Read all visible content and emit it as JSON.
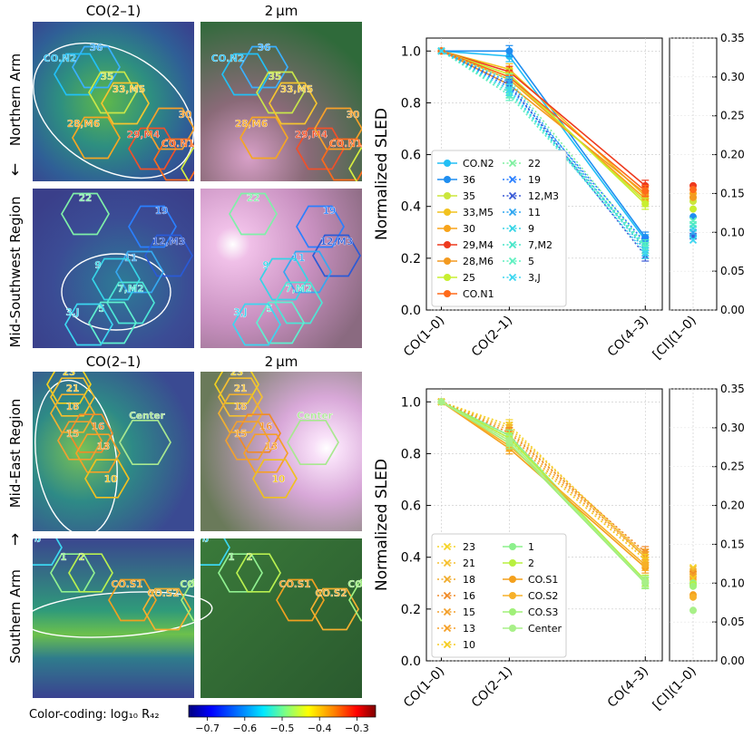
{
  "left_panel": {
    "top_headers": [
      "CO(2–1)",
      "2 μm"
    ],
    "mid_headers": [
      "CO(2–1)",
      "2 μm"
    ],
    "region_labels": [
      "Northern Arm",
      "Mid-Southwest Region",
      "Mid-East Region",
      "Southern Arm"
    ],
    "arrows": [
      "←",
      "→"
    ],
    "colorbar_label": "Color-coding: log₁₀ R₄₂",
    "colorbar_ticks": [
      "−0.7",
      "−0.6",
      "−0.5",
      "−0.4",
      "−0.3"
    ],
    "colorbar_colors": [
      "#00007f",
      "#0000ff",
      "#007fff",
      "#00ffff",
      "#7fff7f",
      "#ffff00",
      "#ff7f00",
      "#ff0000",
      "#7f0000"
    ],
    "panels": [
      {
        "hexes": [
          {
            "label": "36",
            "color": "#3ab0ff"
          },
          {
            "label": "CO.N2",
            "color": "#22c0f5"
          },
          {
            "label": "35",
            "color": "#c8e64a"
          },
          {
            "label": "33,M5",
            "color": "#f4c430"
          },
          {
            "label": "28,M6",
            "color": "#f5a623"
          },
          {
            "label": "29,M4",
            "color": "#f0502a"
          },
          {
            "label": "30",
            "color": "#f7a02a"
          },
          {
            "label": "CO.N1",
            "color": "#ff6a1a"
          },
          {
            "label": "25",
            "color": "#d6ee40"
          }
        ]
      },
      {
        "hexes": [
          {
            "label": "22",
            "color": "#7ff0a8"
          },
          {
            "label": "19",
            "color": "#2a7fff"
          },
          {
            "label": "12,M3",
            "color": "#2a5ad6"
          },
          {
            "label": "11",
            "color": "#35a8f0"
          },
          {
            "label": "9",
            "color": "#36d4e6"
          },
          {
            "label": "7,M2",
            "color": "#4ce6d6"
          },
          {
            "label": "5",
            "color": "#5ff0d0"
          },
          {
            "label": "3,J",
            "color": "#3cd6f0"
          }
        ]
      },
      {
        "hexes": [
          {
            "label": "23",
            "color": "#f0d020"
          },
          {
            "label": "21",
            "color": "#f5c030"
          },
          {
            "label": "18",
            "color": "#f0b030"
          },
          {
            "label": "16",
            "color": "#f08a28"
          },
          {
            "label": "15",
            "color": "#f0a030"
          },
          {
            "label": "13",
            "color": "#f5a028"
          },
          {
            "label": "10",
            "color": "#f0c020"
          },
          {
            "label": "Center",
            "color": "#a8e890"
          }
        ]
      },
      {
        "hexes": [
          {
            "label": "3,J",
            "color": "#3cd6f0"
          },
          {
            "label": "1",
            "color": "#90f090"
          },
          {
            "label": "2",
            "color": "#b8f050"
          },
          {
            "label": "CO.S1",
            "color": "#f0a020"
          },
          {
            "label": "CO.S2",
            "color": "#f5b030"
          },
          {
            "label": "CO.S3",
            "color": "#a0f080"
          }
        ]
      }
    ]
  },
  "chart_data": [
    {
      "type": "line",
      "title": "",
      "ylabel": "Normalized SLED",
      "categories": [
        "CO(1–0)",
        "CO(2–1)",
        "CO(4–3)"
      ],
      "x_positions": [
        1,
        2,
        4
      ],
      "ylim": [
        0.0,
        1.05
      ],
      "yticks": [
        "0.0",
        "0.2",
        "0.4",
        "0.6",
        "0.8",
        "1.0"
      ],
      "right_categories": [
        "[CI](1–0)"
      ],
      "right_ylim": [
        0.0,
        0.35
      ],
      "right_yticks": [
        "0.00",
        "0.05",
        "0.10",
        "0.15",
        "0.20",
        "0.25",
        "0.30",
        "0.35"
      ],
      "series": [
        {
          "name": "CO.N2",
          "color": "#22bff5",
          "values": [
            1.0,
            0.98,
            0.27
          ],
          "ci": 0.095
        },
        {
          "name": "36",
          "color": "#1f8ef0",
          "values": [
            1.0,
            1.0,
            0.28
          ],
          "ci": 0.12
        },
        {
          "name": "35",
          "color": "#cbe63c",
          "values": [
            1.0,
            0.9,
            0.42
          ],
          "ci": 0.14
        },
        {
          "name": "33,M5",
          "color": "#f2c21e",
          "values": [
            1.0,
            0.93,
            0.44
          ],
          "ci": 0.145
        },
        {
          "name": "30",
          "color": "#f8a41a",
          "values": [
            1.0,
            0.89,
            0.43
          ],
          "ci": 0.15
        },
        {
          "name": "29,M4",
          "color": "#ee3a1e",
          "values": [
            1.0,
            0.92,
            0.48
          ],
          "ci": 0.16
        },
        {
          "name": "28,M6",
          "color": "#f39a20",
          "values": [
            1.0,
            0.87,
            0.45
          ],
          "ci": 0.145
        },
        {
          "name": "25",
          "color": "#c8ef30",
          "values": [
            1.0,
            0.91,
            0.41
          ],
          "ci": 0.13
        },
        {
          "name": "CO.N1",
          "color": "#ff6a1a",
          "values": [
            1.0,
            0.9,
            0.46
          ],
          "ci": 0.155
        },
        {
          "name": "22",
          "color": "#7ff0a0",
          "values": [
            1.0,
            0.89,
            0.25
          ],
          "dashed": true,
          "ci": 0.11
        },
        {
          "name": "19",
          "color": "#2a7fff",
          "values": [
            1.0,
            0.86,
            0.26
          ],
          "dashed": true,
          "ci": 0.1
        },
        {
          "name": "12,M3",
          "color": "#3a5ad6",
          "values": [
            1.0,
            0.87,
            0.21
          ],
          "dashed": true,
          "ci": 0.095
        },
        {
          "name": "11",
          "color": "#2fa6f0",
          "values": [
            1.0,
            0.88,
            0.23
          ],
          "dashed": true,
          "ci": 0.1
        },
        {
          "name": "9",
          "color": "#36d4e6",
          "values": [
            1.0,
            0.85,
            0.24
          ],
          "dashed": true,
          "ci": 0.105
        },
        {
          "name": "7,M2",
          "color": "#46e6c8",
          "values": [
            1.0,
            0.84,
            0.25
          ],
          "dashed": true,
          "ci": 0.11
        },
        {
          "name": "5",
          "color": "#5ff0c0",
          "values": [
            1.0,
            0.83,
            0.24
          ],
          "dashed": true,
          "ci": 0.115
        },
        {
          "name": "3,J",
          "color": "#3cd6f0",
          "values": [
            1.0,
            0.85,
            0.22
          ],
          "dashed": true,
          "ci": 0.09
        }
      ]
    },
    {
      "type": "line",
      "title": "",
      "ylabel": "Normalized SLED",
      "categories": [
        "CO(1–0)",
        "CO(2–1)",
        "CO(4–3)"
      ],
      "x_positions": [
        1,
        2,
        4
      ],
      "ylim": [
        0.0,
        1.05
      ],
      "yticks": [
        "0.0",
        "0.2",
        "0.4",
        "0.6",
        "0.8",
        "1.0"
      ],
      "right_categories": [
        "[CI](1–0)"
      ],
      "right_ylim": [
        0.0,
        0.35
      ],
      "right_yticks": [
        "0.00",
        "0.05",
        "0.10",
        "0.15",
        "0.20",
        "0.25",
        "0.30",
        "0.35"
      ],
      "series": [
        {
          "name": "23",
          "color": "#f5d428",
          "values": [
            1.0,
            0.91,
            0.4
          ],
          "dashed": true,
          "ci": 0.12
        },
        {
          "name": "21",
          "color": "#f5c030",
          "values": [
            1.0,
            0.9,
            0.41
          ],
          "dashed": true,
          "ci": 0.118
        },
        {
          "name": "18",
          "color": "#f0ac2c",
          "values": [
            1.0,
            0.89,
            0.4
          ],
          "dashed": true,
          "ci": 0.115
        },
        {
          "name": "16",
          "color": "#f08a28",
          "values": [
            1.0,
            0.88,
            0.42
          ],
          "dashed": true,
          "ci": 0.112
        },
        {
          "name": "15",
          "color": "#f3a02c",
          "values": [
            1.0,
            0.87,
            0.41
          ],
          "dashed": true,
          "ci": 0.11
        },
        {
          "name": "13",
          "color": "#f5a028",
          "values": [
            1.0,
            0.86,
            0.4
          ],
          "dashed": true,
          "ci": 0.108
        },
        {
          "name": "10",
          "color": "#f5cc20",
          "values": [
            1.0,
            0.85,
            0.39
          ],
          "dashed": true,
          "ci": 0.106
        },
        {
          "name": "1",
          "color": "#8cf08c",
          "values": [
            1.0,
            0.87,
            0.3
          ],
          "ci": 0.1
        },
        {
          "name": "2",
          "color": "#b8f040",
          "values": [
            1.0,
            0.86,
            0.31
          ],
          "ci": 0.098
        },
        {
          "name": "CO.S1",
          "color": "#f4a01c",
          "values": [
            1.0,
            0.82,
            0.36
          ],
          "ci": 0.085
        },
        {
          "name": "CO.S2",
          "color": "#f7b028",
          "values": [
            1.0,
            0.83,
            0.37
          ],
          "ci": 0.082
        },
        {
          "name": "CO.S3",
          "color": "#a0f078",
          "values": [
            1.0,
            0.84,
            0.3
          ],
          "ci": 0.096
        },
        {
          "name": "Center",
          "color": "#a8f088",
          "values": [
            1.0,
            0.85,
            0.305
          ],
          "ci": 0.065
        }
      ]
    }
  ]
}
